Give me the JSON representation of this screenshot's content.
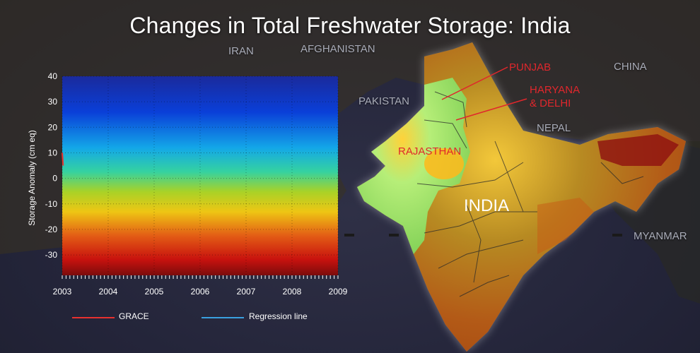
{
  "page": {
    "title": "Changes in Total Freshwater Storage: India"
  },
  "map": {
    "countries": [
      "IRAN",
      "AFGHANISTAN",
      "PAKISTAN",
      "CHINA",
      "NEPAL",
      "MYANMAR"
    ],
    "main_label": "INDIA",
    "regions": [
      "PUNJAB",
      "HARYANA\n& DELHI",
      "RAJASTHAN"
    ],
    "region_color": "#e0272c"
  },
  "chart_data": {
    "type": "line",
    "title": "",
    "xlabel": "",
    "ylabel": "Storage Anomaly (cm eq)",
    "x_ticks": [
      "2003",
      "2004",
      "2005",
      "2006",
      "2007",
      "2008",
      "2009"
    ],
    "y_ticks": [
      40,
      30,
      20,
      10,
      0,
      -10,
      -20,
      -30
    ],
    "ylim": [
      -38,
      40
    ],
    "xlim": [
      2003,
      2009
    ],
    "grid": true,
    "background": "vertical color gradient from blue (+40) through cyan, green, yellow, orange to dark red (-38)",
    "series": [
      {
        "name": "GRACE",
        "color": "#e8312f",
        "x": [
          2003.0,
          2003.02
        ],
        "y": [
          10,
          5
        ]
      },
      {
        "name": "Regression line",
        "color": "#3aa0e0",
        "x": [],
        "y": []
      }
    ],
    "legend_position": "bottom"
  }
}
